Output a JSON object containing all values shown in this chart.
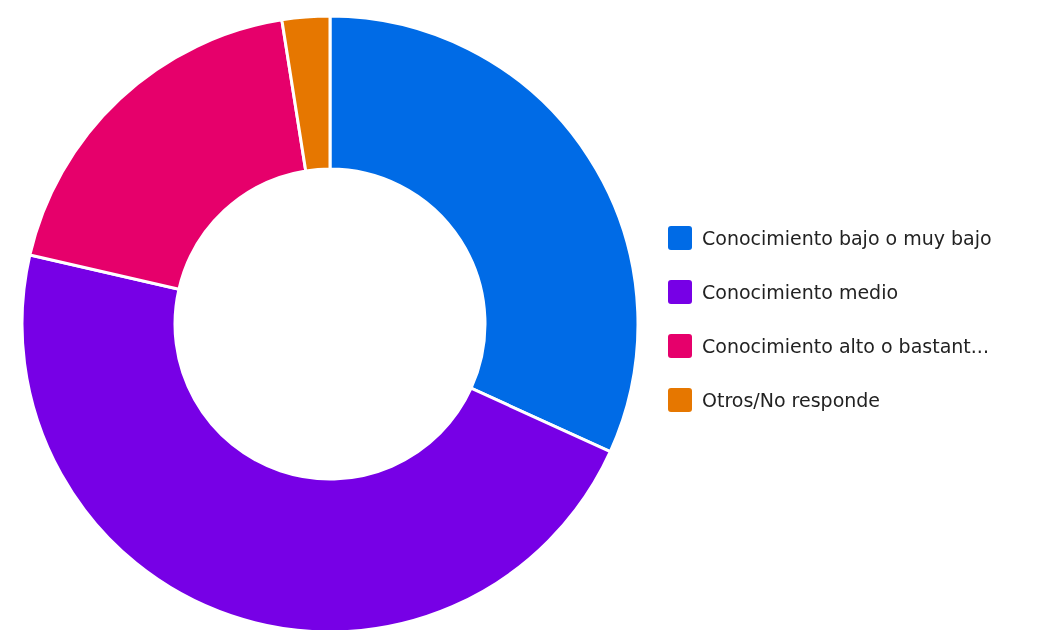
{
  "chart_data": {
    "type": "donut",
    "categories": [
      "Conocimiento bajo o muy bajo",
      "Conocimiento medio",
      "Conocimiento alto o bastant...",
      "Otros/No responde"
    ],
    "values": [
      31.8,
      46.8,
      18.9,
      2.5
    ],
    "colors": [
      "#006be6",
      "#7700e6",
      "#e6006b",
      "#e67700"
    ],
    "legend": "right"
  }
}
